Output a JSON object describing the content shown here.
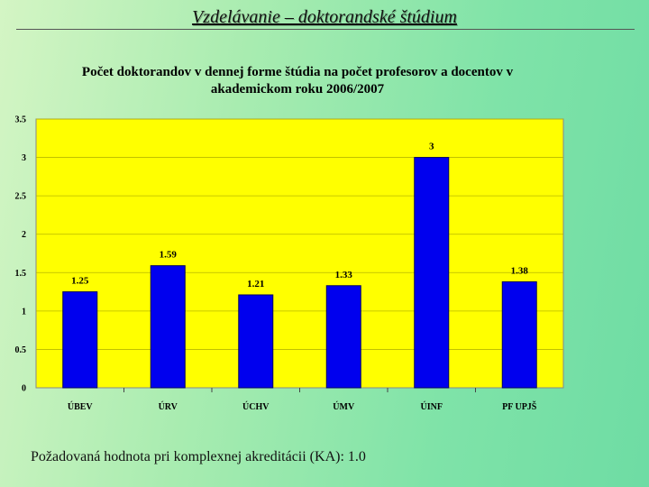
{
  "slide": {
    "title": "Vzdelávanie – doktorandské štúdium",
    "note": "Požadovaná hodnota pri komplexnej akreditácii (KA): 1.0"
  },
  "colors": {
    "plot_background": "#ffff00",
    "bar": "#0000ee",
    "bar_edge": "#000066"
  },
  "chart_data": {
    "type": "bar",
    "title_lines": [
      "Počet doktorandov v dennej forme štúdia na počet profesorov a docentov v",
      "akademickom roku 2006/2007"
    ],
    "categories": [
      "ÚBEV",
      "ÚRV",
      "ÚCHV",
      "ÚMV",
      "ÚINF",
      "PF UPJŠ"
    ],
    "values": [
      1.25,
      1.59,
      1.21,
      1.33,
      3,
      1.38
    ],
    "value_labels": [
      "1.25",
      "1.59",
      "1.21",
      "1.33",
      "3",
      "1.38"
    ],
    "yticks": [
      "0",
      "0.5",
      "1",
      "1.5",
      "2",
      "2.5",
      "3",
      "3.5"
    ],
    "ylim": [
      0,
      3.5
    ],
    "grid": true,
    "legend": false
  }
}
